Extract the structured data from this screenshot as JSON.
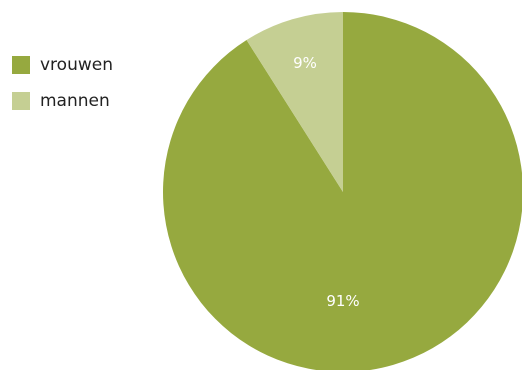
{
  "chart_data": {
    "type": "pie",
    "title": "",
    "legend_position": "left",
    "slices": [
      {
        "name": "vrouwen",
        "value": 91,
        "label": "91%",
        "color": "#96a93f",
        "label_color": "#ffffff"
      },
      {
        "name": "mannen",
        "value": 9,
        "label": "9%",
        "color": "#c5cf93",
        "label_color": "#ffffff"
      }
    ]
  }
}
